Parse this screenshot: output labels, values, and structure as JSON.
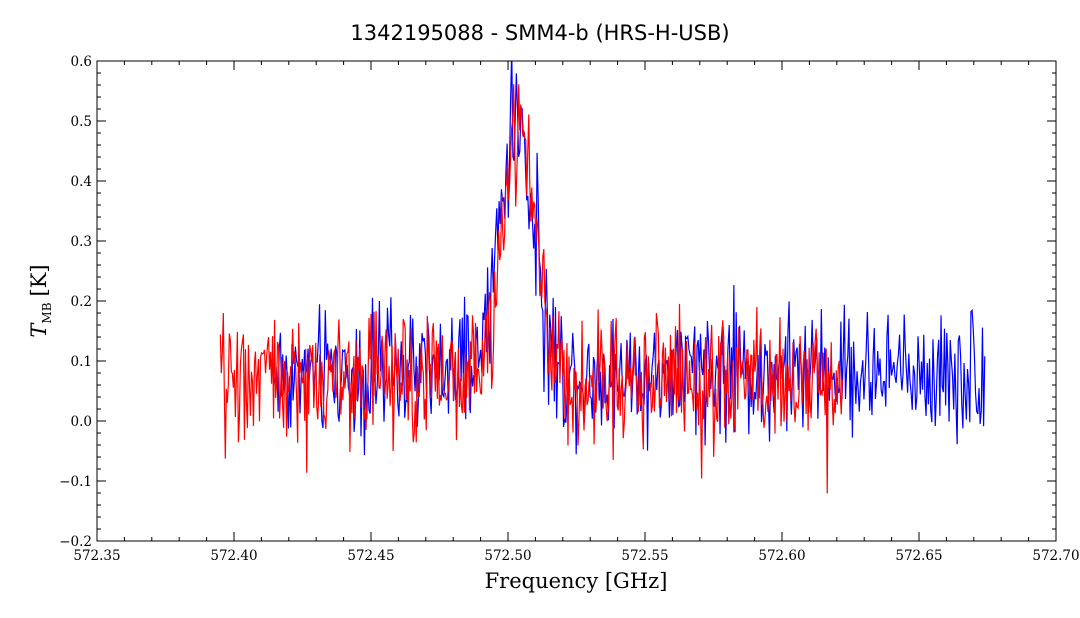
{
  "chart_data": {
    "type": "line",
    "title": "1342195088 - SMM4-b (HRS-H-USB)",
    "xlabel": "Frequency [GHz]",
    "ylabel": {
      "symbol": "T",
      "subscript": "MB",
      "unit": "[K]"
    },
    "xlim": [
      572.35,
      572.7
    ],
    "ylim": [
      -0.2,
      0.6
    ],
    "x_ticks": [
      572.35,
      572.4,
      572.45,
      572.5,
      572.55,
      572.6,
      572.65,
      572.7
    ],
    "x_tick_labels": [
      "572.35",
      "572.40",
      "572.45",
      "572.50",
      "572.55",
      "572.60",
      "572.65",
      "572.70"
    ],
    "y_ticks": [
      -0.2,
      -0.1,
      0.0,
      0.1,
      0.2,
      0.3,
      0.4,
      0.5,
      0.6
    ],
    "y_tick_labels": [
      "−0.2",
      "−0.1",
      "0.0",
      "0.1",
      "0.2",
      "0.3",
      "0.4",
      "0.5",
      "0.6"
    ],
    "grid": false,
    "series": [
      {
        "color": "#0000ff",
        "x_range": [
          572.414,
          572.674
        ],
        "baseline": 0.08,
        "noise_amplitude": 0.06,
        "line_peak": {
          "center": 572.503,
          "peak": 0.5,
          "width": 0.006
        }
      },
      {
        "color": "#ff0000",
        "x_range": [
          572.395,
          572.622
        ],
        "baseline": 0.07,
        "noise_amplitude": 0.06,
        "line_peak": {
          "center": 572.504,
          "peak": 0.5,
          "width": 0.006
        }
      }
    ]
  }
}
